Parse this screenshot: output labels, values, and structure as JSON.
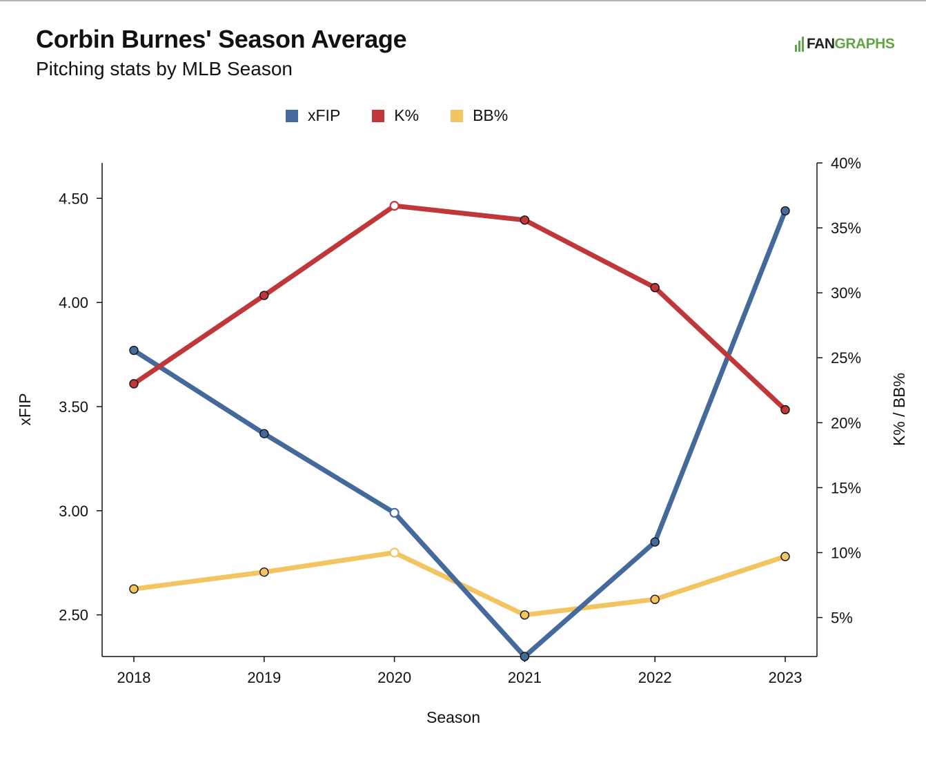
{
  "header": {
    "title": "Corbin Burnes' Season Average",
    "subtitle": "Pitching stats by MLB Season"
  },
  "logo": {
    "part1": "FAN",
    "part2": "GRAPHS"
  },
  "chart_data": {
    "type": "line",
    "title": "Corbin Burnes' Season Average",
    "subtitle": "Pitching stats by MLB Season",
    "xlabel": "Season",
    "ylabel_left": "xFIP",
    "ylabel_right": "K% / BB%",
    "categories": [
      "2018",
      "2019",
      "2020",
      "2021",
      "2022",
      "2023"
    ],
    "y_left": {
      "ylim": [
        2.3,
        4.67
      ],
      "ticks": [
        2.5,
        3.0,
        3.5,
        4.0,
        4.5
      ],
      "tick_labels": [
        "2.50",
        "3.00",
        "3.50",
        "4.00",
        "4.50"
      ]
    },
    "y_right": {
      "ylim": [
        2.0,
        40.0
      ],
      "ticks": [
        5,
        10,
        15,
        20,
        25,
        30,
        35,
        40
      ],
      "tick_labels": [
        "5%",
        "10%",
        "15%",
        "20%",
        "25%",
        "30%",
        "35%",
        "40%"
      ]
    },
    "legend_position": "top-center",
    "grid": false,
    "series": [
      {
        "name": "xFIP",
        "axis": "left",
        "color": "#44699b",
        "values": [
          3.77,
          3.37,
          2.99,
          2.3,
          2.85,
          4.44
        ],
        "hollow_index": 2
      },
      {
        "name": "K%",
        "axis": "right",
        "color": "#c0373a",
        "values": [
          23.0,
          29.8,
          36.7,
          35.6,
          30.4,
          21.0
        ],
        "hollow_index": 2
      },
      {
        "name": "BB%",
        "axis": "right",
        "color": "#f2c462",
        "values": [
          7.2,
          8.5,
          10.0,
          5.2,
          6.4,
          9.7
        ],
        "hollow_index": 2
      }
    ]
  }
}
